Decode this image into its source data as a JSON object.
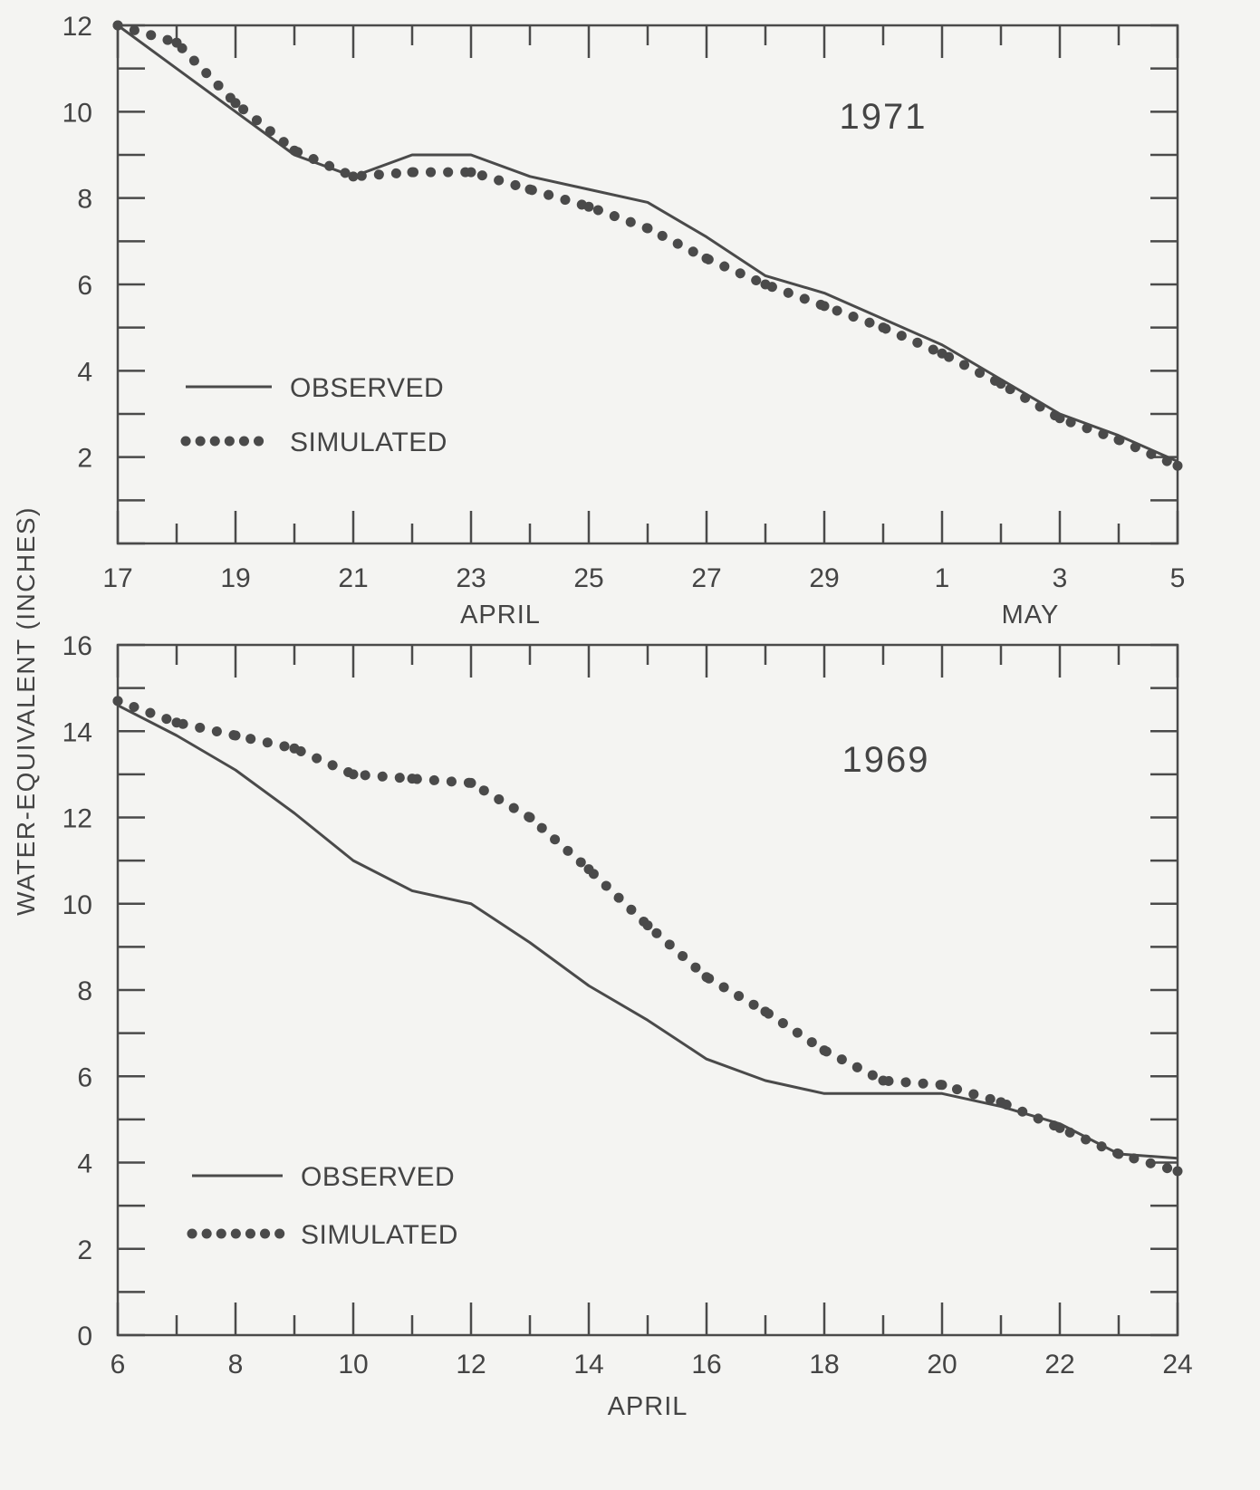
{
  "ylabel": "WATER-EQUIVALENT (INCHES)",
  "colors": {
    "ink": "#4a4a4a",
    "background": "#f4f4f2"
  },
  "chart_data": [
    {
      "type": "line",
      "annotation": "1971",
      "ylim": [
        0,
        12
      ],
      "yticks": [
        2,
        4,
        6,
        8,
        10,
        12
      ],
      "xlim_days": [
        17,
        35
      ],
      "x_tick_labels": [
        {
          "day": 17,
          "label": "17"
        },
        {
          "day": 19,
          "label": "19"
        },
        {
          "day": 21,
          "label": "21"
        },
        {
          "day": 23,
          "label": "23"
        },
        {
          "day": 25,
          "label": "25"
        },
        {
          "day": 27,
          "label": "27"
        },
        {
          "day": 29,
          "label": "29"
        },
        {
          "day": 31,
          "label": "1"
        },
        {
          "day": 33,
          "label": "3"
        },
        {
          "day": 35,
          "label": "5"
        }
      ],
      "month_labels": [
        {
          "label": "APRIL",
          "day": 23.5
        },
        {
          "label": "MAY",
          "day": 32.5
        }
      ],
      "legend": {
        "position": "left",
        "observed": "OBSERVED",
        "simulated": "SIMULATED"
      },
      "series": [
        {
          "name": "OBSERVED",
          "style": "solid",
          "x": [
            17,
            18,
            19,
            20,
            21,
            22,
            23,
            24,
            25,
            26,
            27,
            28,
            29,
            30,
            31,
            32,
            33,
            34,
            35
          ],
          "y": [
            12.0,
            11.0,
            10.0,
            9.0,
            8.5,
            9.0,
            9.0,
            8.5,
            8.2,
            7.9,
            7.1,
            6.2,
            5.8,
            5.2,
            4.6,
            3.8,
            3.0,
            2.5,
            1.9
          ]
        },
        {
          "name": "SIMULATED",
          "style": "dotted",
          "x": [
            17,
            18,
            19,
            20,
            21,
            22,
            23,
            24,
            25,
            26,
            27,
            28,
            29,
            30,
            31,
            32,
            33,
            34,
            35
          ],
          "y": [
            12.0,
            11.6,
            10.2,
            9.1,
            8.5,
            8.6,
            8.6,
            8.2,
            7.8,
            7.3,
            6.6,
            6.0,
            5.5,
            5.0,
            4.4,
            3.7,
            2.9,
            2.4,
            1.8
          ]
        }
      ]
    },
    {
      "type": "line",
      "annotation": "1969",
      "ylim": [
        0,
        16
      ],
      "yticks": [
        0,
        2,
        4,
        6,
        8,
        10,
        12,
        14,
        16
      ],
      "xlim_days": [
        6,
        24
      ],
      "x_tick_labels": [
        {
          "day": 6,
          "label": "6"
        },
        {
          "day": 8,
          "label": "8"
        },
        {
          "day": 10,
          "label": "10"
        },
        {
          "day": 12,
          "label": "12"
        },
        {
          "day": 14,
          "label": "14"
        },
        {
          "day": 16,
          "label": "16"
        },
        {
          "day": 18,
          "label": "18"
        },
        {
          "day": 20,
          "label": "20"
        },
        {
          "day": 22,
          "label": "22"
        },
        {
          "day": 24,
          "label": "24"
        }
      ],
      "month_labels": [
        {
          "label": "APRIL",
          "day": 15
        }
      ],
      "legend": {
        "position": "lower-left",
        "observed": "OBSERVED",
        "simulated": "SIMULATED"
      },
      "series": [
        {
          "name": "OBSERVED",
          "style": "solid",
          "x": [
            6,
            7,
            8,
            9,
            10,
            11,
            12,
            13,
            14,
            15,
            16,
            17,
            18,
            19,
            20,
            21,
            22,
            23,
            24
          ],
          "y": [
            14.6,
            13.9,
            13.1,
            12.1,
            11.0,
            10.3,
            10.0,
            9.1,
            8.1,
            7.3,
            6.4,
            5.9,
            5.6,
            5.6,
            5.6,
            5.3,
            4.9,
            4.2,
            4.1
          ]
        },
        {
          "name": "SIMULATED",
          "style": "dotted",
          "x": [
            6,
            7,
            8,
            9,
            10,
            11,
            12,
            13,
            14,
            15,
            16,
            17,
            18,
            19,
            20,
            21,
            22,
            23,
            24
          ],
          "y": [
            14.7,
            14.2,
            13.9,
            13.6,
            13.0,
            12.9,
            12.8,
            12.0,
            10.8,
            9.5,
            8.3,
            7.5,
            6.6,
            5.9,
            5.8,
            5.4,
            4.8,
            4.2,
            3.8
          ]
        }
      ]
    }
  ]
}
